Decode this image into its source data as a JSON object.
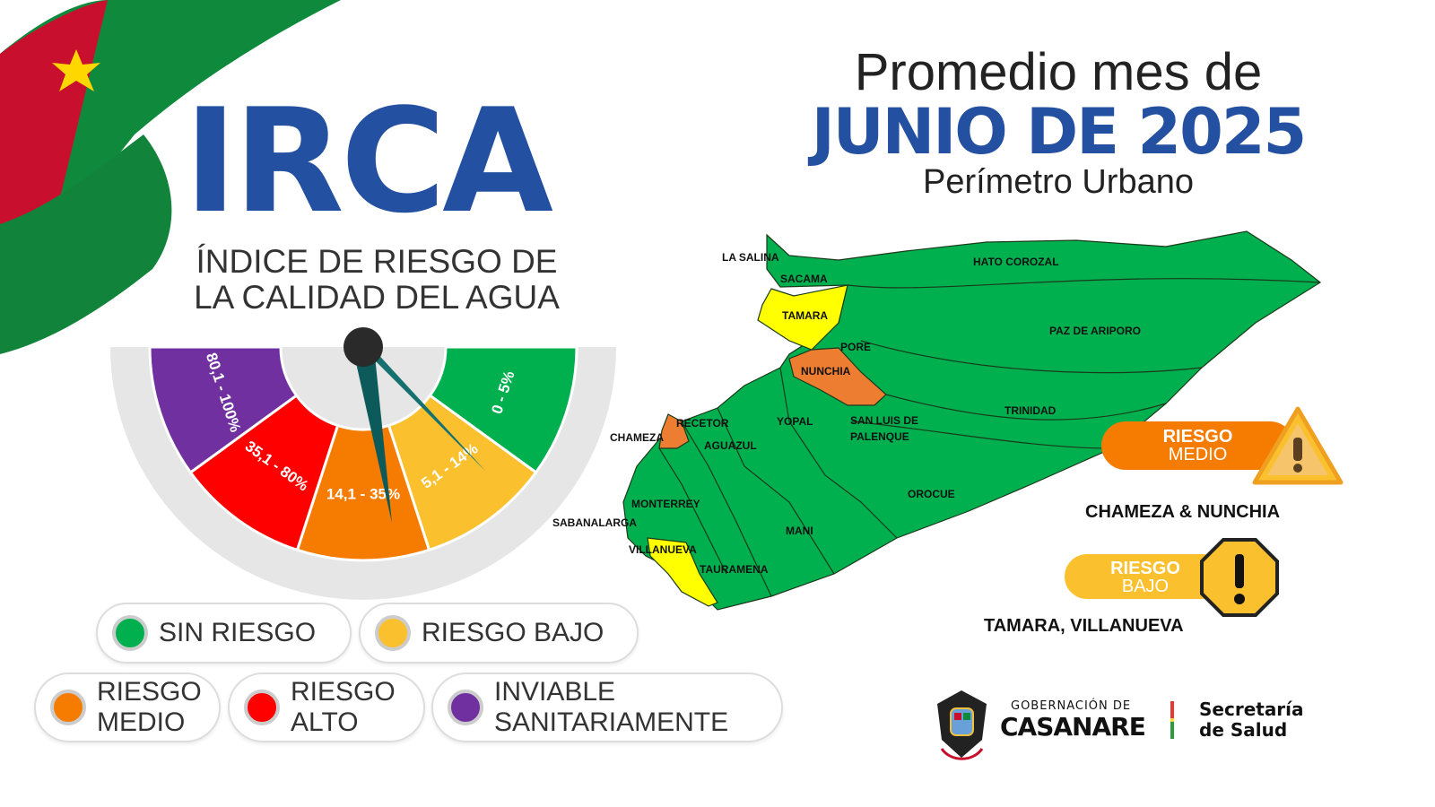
{
  "title": {
    "main": "IRCA",
    "subtitle_line1": "ÍNDICE DE RIESGO DE",
    "subtitle_line2": "LA CALIDAD DEL AGUA"
  },
  "header": {
    "line1": "Promedio mes de",
    "line2": "JUNIO DE 2025",
    "line3": "Perímetro Urbano"
  },
  "gauge": {
    "segments": [
      {
        "label": "0 - 5%",
        "color": "#00b04f"
      },
      {
        "label": "5,1 - 14%",
        "color": "#fbc02d"
      },
      {
        "label": "14,1 - 35%",
        "color": "#f57c00"
      },
      {
        "label": "35,1 - 80%",
        "color": "#ff0000"
      },
      {
        "label": "80,1 - 100%",
        "color": "#7030a0"
      }
    ],
    "needle_color": "#0d5a5a"
  },
  "legend": [
    {
      "label": "SIN RIESGO",
      "color": "#00b04f"
    },
    {
      "label": "RIESGO BAJO",
      "color": "#fbc02d"
    },
    {
      "label": "RIESGO MEDIO",
      "color": "#f57c00"
    },
    {
      "label": "RIESGO ALTO",
      "color": "#ff0000"
    },
    {
      "label": "INVIABLE SANITARIAMENTE",
      "color": "#7030a0"
    }
  ],
  "map": {
    "municipalities": [
      "LA SALINA",
      "SACAMA",
      "TAMARA",
      "HATO COROZAL",
      "PAZ DE ARIPORO",
      "PORE",
      "NUNCHIA",
      "TRINIDAD",
      "RECETOR",
      "CHAMEZA",
      "YOPAL",
      "SAN LUIS DE PALENQUE",
      "AGUAZUL",
      "MONTERREY",
      "SABANALARGA",
      "OROCUE",
      "MANI",
      "VILLANUEVA",
      "TAURAMENA"
    ],
    "colors": {
      "sin_riesgo": "#00b04f",
      "bajo": "#ffff00",
      "medio": "#ed7d31"
    }
  },
  "risk_callouts": [
    {
      "label_top": "RIESGO",
      "label_bottom": "MEDIO",
      "municipalities": "CHAMEZA & NUNCHIA",
      "color": "#f57c00",
      "icon": "warning-triangle-icon"
    },
    {
      "label_top": "RIESGO",
      "label_bottom": "BAJO",
      "municipalities": "TAMARA, VILLANUEVA",
      "color": "#fbc02d",
      "icon": "warning-octagon-icon"
    }
  ],
  "footer": {
    "gov_line1": "GOBERNACIÓN DE",
    "gov_line2": "CASANARE",
    "dept_line1": "Secretaría",
    "dept_line2": "de Salud"
  }
}
